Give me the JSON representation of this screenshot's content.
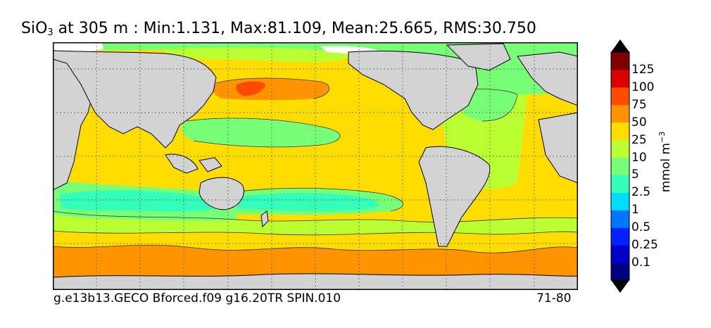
{
  "title": {
    "species": "SiO",
    "species_sub": "3",
    "text": " at 305 m : Min:1.131, Max:81.109, Mean:25.665, RMS:30.750"
  },
  "footer": {
    "case": "g.e13b13.GECO Bforced.f09 g16.20TR SPIN.010",
    "years": "71-80"
  },
  "colorbar": {
    "unit_base": "mmol m",
    "unit_exp": "−3",
    "ticks": [
      "0.1",
      "0.25",
      "0.5",
      "1",
      "2.5",
      "5",
      "10",
      "25",
      "50",
      "75",
      "100",
      "125"
    ],
    "colors": [
      "#00007f",
      "#0000cc",
      "#0022ff",
      "#0077ff",
      "#00ddff",
      "#33ffbb",
      "#77ff77",
      "#bbff33",
      "#ffdd00",
      "#ff9400",
      "#ff4a00",
      "#dd0000",
      "#7f0000"
    ],
    "extend": "both"
  },
  "colors": {
    "land": "#d3d3d3",
    "missing": "#ffffff",
    "coastline": "#000000",
    "contour": "#333333"
  },
  "map": {
    "projection": "cylindrical",
    "lon_range": [
      20,
      380
    ],
    "lat_range": [
      -80,
      90
    ],
    "grid": "dotted, 30° spacing"
  }
}
